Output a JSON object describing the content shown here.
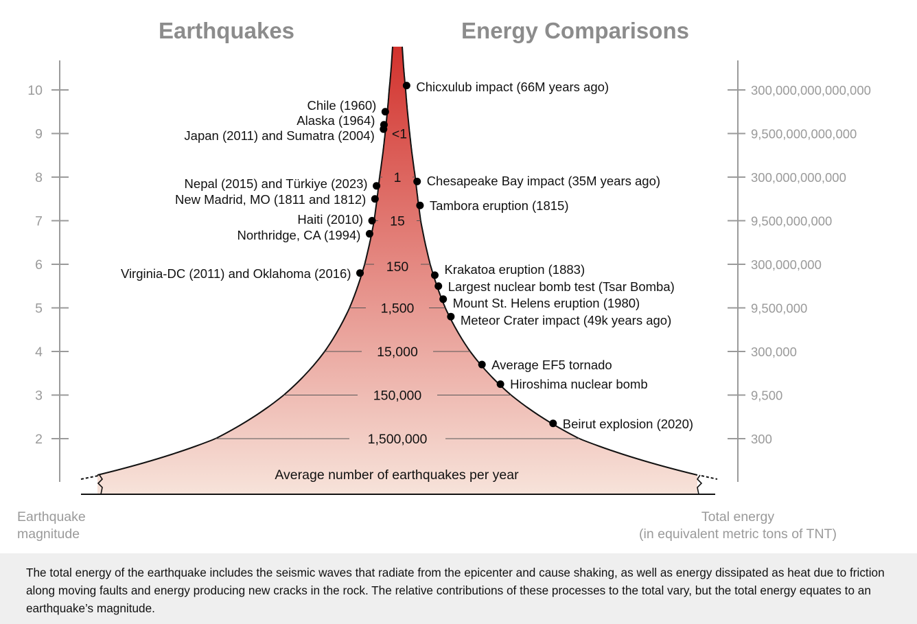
{
  "titles": {
    "left": "Earthquakes",
    "right": "Energy Comparisons"
  },
  "axis_left": {
    "label_line1": "Earthquake",
    "label_line2": "magnitude",
    "ticks": [
      "10",
      "9",
      "8",
      "7",
      "6",
      "5",
      "4",
      "3",
      "2"
    ]
  },
  "axis_right": {
    "label_line1": "Total energy",
    "label_line2": "(in equivalent metric tons of TNT)",
    "ticks": [
      "300,000,000,000,000",
      "9,500,000,000,000",
      "300,000,000,000",
      "9,500,000,000",
      "300,000,000",
      "9,500,000",
      "300,000",
      "9,500",
      "300"
    ]
  },
  "chart_data": {
    "type": "diagram",
    "magnitudes": [
      10,
      9,
      8,
      7,
      6,
      5,
      4,
      3,
      2
    ],
    "earthquakes_per_year": [
      {
        "magnitude": 9,
        "label": "<1"
      },
      {
        "magnitude": 8,
        "label": "1"
      },
      {
        "magnitude": 7,
        "label": "15"
      },
      {
        "magnitude": 6,
        "label": "150"
      },
      {
        "magnitude": 5,
        "label": "1,500"
      },
      {
        "magnitude": 4,
        "label": "15,000"
      },
      {
        "magnitude": 3,
        "label": "150,000"
      },
      {
        "magnitude": 2,
        "label": "1,500,000"
      }
    ],
    "shape_label": "Average number of earthquakes per year",
    "earthquakes": [
      {
        "label": "Chile (1960)",
        "magnitude": 9.5
      },
      {
        "label": "Alaska (1964)",
        "magnitude": 9.2
      },
      {
        "label": "Japan (2011) and Sumatra (2004)",
        "magnitude": 9.1
      },
      {
        "label": "Nepal (2015) and Türkiye (2023)",
        "magnitude": 7.8
      },
      {
        "label": "New Madrid, MO (1811 and 1812)",
        "magnitude": 7.5
      },
      {
        "label": "Haiti (2010)",
        "magnitude": 7.0
      },
      {
        "label": "Northridge, CA (1994)",
        "magnitude": 6.7
      },
      {
        "label": "Virginia-DC (2011) and Oklahoma (2016)",
        "magnitude": 5.8
      }
    ],
    "energy_events": [
      {
        "label": "Chicxulub impact (66M years ago)",
        "magnitude": 10.1
      },
      {
        "label": "Chesapeake Bay impact (35M years ago)",
        "magnitude": 7.9
      },
      {
        "label": "Tambora eruption (1815)",
        "magnitude": 7.35
      },
      {
        "label": "Krakatoa eruption (1883)",
        "magnitude": 5.75
      },
      {
        "label": "Largest nuclear bomb test (Tsar Bomba)",
        "magnitude": 5.5
      },
      {
        "label": "Mount St. Helens eruption (1980)",
        "magnitude": 5.2
      },
      {
        "label": "Meteor Crater impact (49k years ago)",
        "magnitude": 4.8
      },
      {
        "label": "Average EF5 tornado",
        "magnitude": 3.7
      },
      {
        "label": "Hiroshima nuclear bomb",
        "magnitude": 3.25
      },
      {
        "label": "Beirut explosion (2020)",
        "magnitude": 2.35
      }
    ]
  },
  "colors": {
    "gradient_top": "#d2322d",
    "gradient_bottom": "#f7e3da",
    "axis": "#9a9a9a",
    "title": "#8c8c8c"
  },
  "caption": "The total energy of the earthquake includes the seismic waves that radiate from the epicenter and cause shaking, as well as energy dissipated as heat due to friction along moving faults and energy producing new cracks in the rock. The relative contributions of these processes to the total vary, but the total energy equates to an earthquake’s magnitude."
}
